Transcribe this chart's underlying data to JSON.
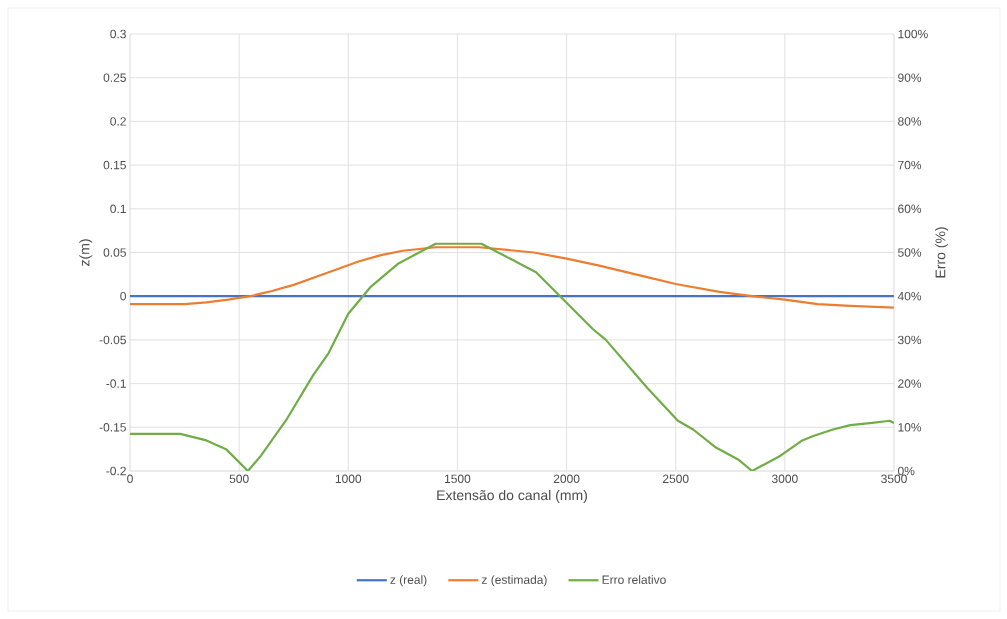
{
  "chart_data": {
    "type": "line",
    "xlabel": "Extensão do canal (mm)",
    "ylabel": "z(m)",
    "y2label": "Erro (%)",
    "xlim": [
      0,
      3500
    ],
    "xticks": [
      0,
      500,
      1000,
      1500,
      2000,
      2500,
      3000,
      3500
    ],
    "ylim": [
      -0.2,
      0.3
    ],
    "yticks": [
      -0.2,
      -0.15,
      -0.1,
      -0.05,
      0,
      0.05,
      0.1,
      0.15,
      0.2,
      0.25,
      0.3
    ],
    "y2lim": [
      0,
      100
    ],
    "y2ticks": [
      {
        "value": 0,
        "label": "0%"
      },
      {
        "value": 10,
        "label": "10%"
      },
      {
        "value": 20,
        "label": "20%"
      },
      {
        "value": 30,
        "label": "30%"
      },
      {
        "value": 40,
        "label": "40%"
      },
      {
        "value": 50,
        "label": "50%"
      },
      {
        "value": 60,
        "label": "60%"
      },
      {
        "value": 70,
        "label": "70%"
      },
      {
        "value": 80,
        "label": "80%"
      },
      {
        "value": 90,
        "label": "90%"
      },
      {
        "value": 100,
        "label": "100%"
      }
    ],
    "grid": true,
    "legend": "bottom",
    "line_style": "solid",
    "marker": "none",
    "series": [
      {
        "name": "z (real)",
        "color": "#4472c4",
        "x": [
          0,
          3500
        ],
        "values": [
          0,
          0
        ]
      },
      {
        "name": "z (estimada)",
        "color": "#ed7d31",
        "x": [
          0,
          250,
          350,
          450,
          550,
          650,
          750,
          850,
          950,
          1050,
          1150,
          1250,
          1400,
          1600,
          1850,
          2000,
          2150,
          2350,
          2500,
          2700,
          2850,
          3000,
          3150,
          3300,
          3500
        ],
        "values": [
          -0.009,
          -0.009,
          -0.007,
          -0.004,
          0,
          0.006,
          0.013,
          0.022,
          0.031,
          0.04,
          0.047,
          0.052,
          0.056,
          0.056,
          0.05,
          0.043,
          0.035,
          0.023,
          0.014,
          0.005,
          0,
          -0.004,
          -0.009,
          -0.011,
          -0.013
        ]
      },
      {
        "name": "Erro relativo",
        "color": "#70ad47",
        "axis": "y2",
        "x": [
          0,
          230,
          350,
          440,
          540,
          600,
          720,
          840,
          910,
          1000,
          1100,
          1230,
          1400,
          1610,
          1860,
          2000,
          2120,
          2180,
          2370,
          2510,
          2580,
          2680,
          2790,
          2850,
          2980,
          3080,
          3130,
          3220,
          3300,
          3400,
          3480,
          3500
        ],
        "values": [
          8.5,
          8.5,
          7,
          5,
          0,
          3.5,
          12,
          22,
          27,
          36,
          42,
          47.5,
          52,
          52,
          45.5,
          38.5,
          32.5,
          30,
          19,
          11.5,
          9.5,
          5.5,
          2.5,
          0,
          3.5,
          7,
          8,
          9.5,
          10.5,
          11,
          11.5,
          11
        ]
      }
    ]
  }
}
